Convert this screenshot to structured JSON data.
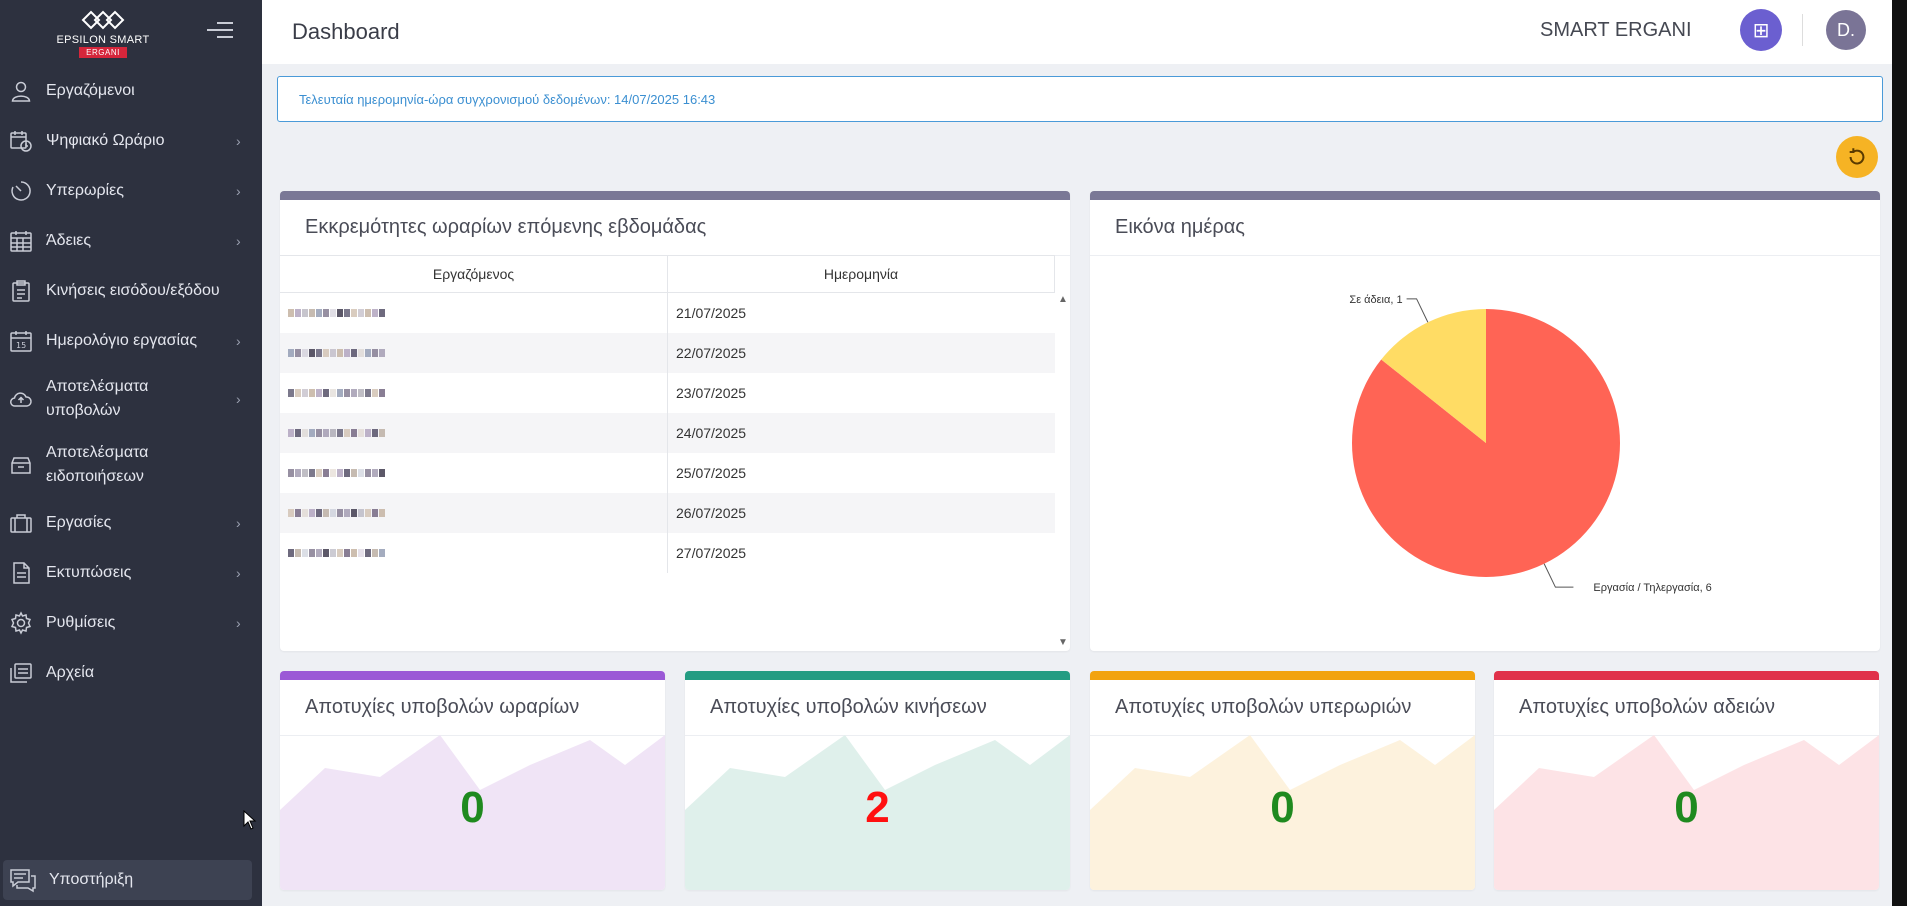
{
  "brand": {
    "logo_text": "EPSILON SMART",
    "logo_badge": "ERGANI"
  },
  "sidebar": {
    "items": [
      {
        "label": "Εργαζόμενοι",
        "icon": "user-icon",
        "chevron": false
      },
      {
        "label": "Ψηφιακό Ωράριο",
        "icon": "calendar-clock-icon",
        "chevron": true
      },
      {
        "label": "Υπερωρίες",
        "icon": "timer-icon",
        "chevron": true
      },
      {
        "label": "Άδειες",
        "icon": "calendar-grid-icon",
        "chevron": true
      },
      {
        "label": "Κινήσεις εισόδου/εξόδου",
        "icon": "clipboard-list-icon",
        "chevron": false
      },
      {
        "label": "Ημερολόγιο εργασίας",
        "icon": "calendar-15-icon",
        "chevron": true
      },
      {
        "label": "Αποτελέσματα υποβολών",
        "icon": "cloud-upload-icon",
        "chevron": true
      },
      {
        "label": "Αποτελέσματα ειδοποιήσεων",
        "icon": "archive-box-icon",
        "chevron": false
      },
      {
        "label": "Εργασίες",
        "icon": "briefcase-icon",
        "chevron": true
      },
      {
        "label": "Εκτυπώσεις",
        "icon": "document-icon",
        "chevron": true
      },
      {
        "label": "Ρυθμίσεις",
        "icon": "gear-icon",
        "chevron": true
      },
      {
        "label": "Αρχεία",
        "icon": "files-icon",
        "chevron": false
      }
    ],
    "support_label": "Υποστήριξη"
  },
  "header": {
    "title": "Dashboard",
    "app_name": "SMART ERGANI",
    "avatar_initials": "D."
  },
  "sync_message": "Τελευταία ημερομηνία-ώρα συγχρονισμού δεδομένων: 14/07/2025 16:43",
  "pending": {
    "title": "Εκκρεμότητες ωραρίων επόμενης εβδομάδας",
    "columns": [
      "Εργαζόμενος",
      "Ημερομηνία"
    ],
    "rows": [
      {
        "date": "21/07/2025"
      },
      {
        "date": "22/07/2025"
      },
      {
        "date": "23/07/2025"
      },
      {
        "date": "24/07/2025"
      },
      {
        "date": "25/07/2025"
      },
      {
        "date": "26/07/2025"
      },
      {
        "date": "27/07/2025"
      }
    ]
  },
  "day_view": {
    "title": "Εικόνα ημέρας",
    "chart_data": {
      "type": "pie",
      "slices": [
        {
          "label": "Εργασία / Τηλεργασία",
          "value": 6,
          "color": "#ff6455"
        },
        {
          "label": "Σε άδεια",
          "value": 1,
          "color": "#ffdc64"
        }
      ]
    }
  },
  "stats": [
    {
      "title": "Αποτυχίες υποβολών ωραρίων",
      "value": "0",
      "accent": "#9b59d6",
      "fill": "#f0e4f6"
    },
    {
      "title": "Αποτυχίες υποβολών κινήσεων",
      "value": "2",
      "accent": "#239c82",
      "fill": "#dff0eb"
    },
    {
      "title": "Αποτυχίες υποβολών υπερωριών",
      "value": "0",
      "accent": "#f2a30f",
      "fill": "#fdf2dd"
    },
    {
      "title": "Αποτυχίες υποβολών αδειών",
      "value": "0",
      "accent": "#e0314a",
      "fill": "#fde3e6"
    }
  ]
}
